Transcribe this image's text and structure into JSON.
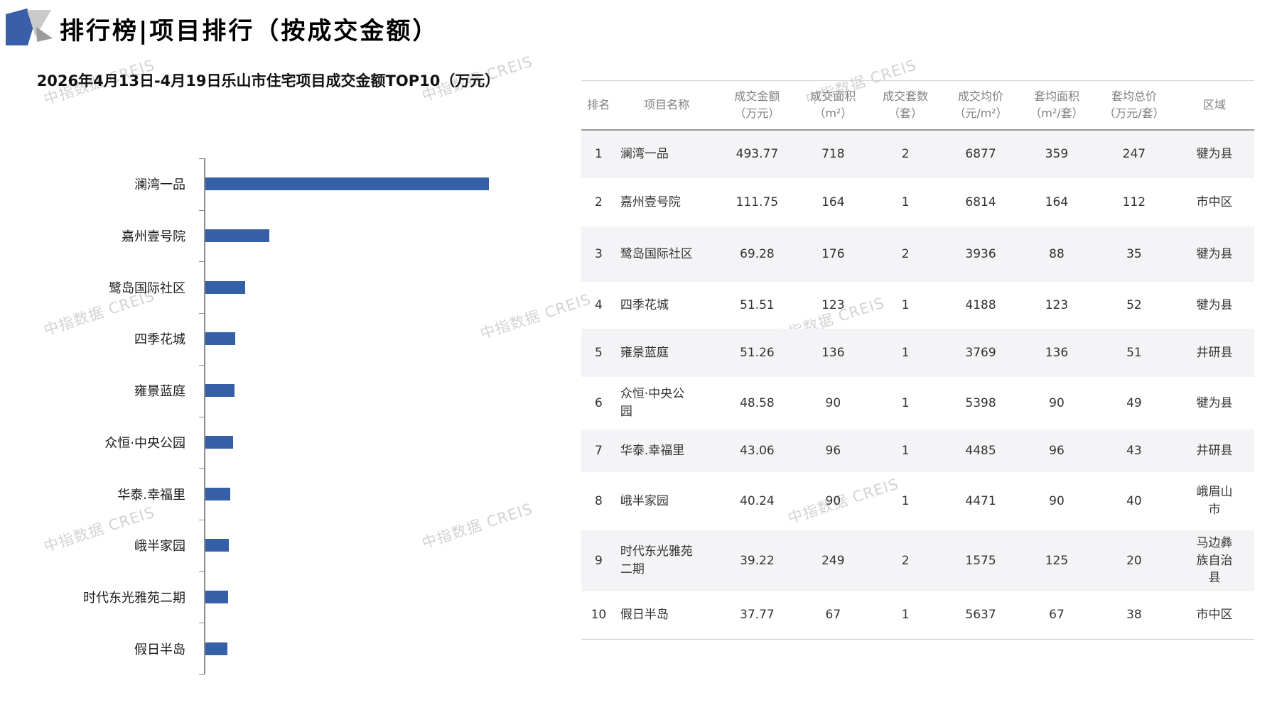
{
  "page": {
    "title": "排行榜|项目排行（按成交金额）",
    "watermark": "中指数据 CREIS"
  },
  "chart_data": {
    "type": "bar",
    "orientation": "horizontal",
    "title": "2026年4月13日-4月19日乐山市住宅项目成交金额TOP10（万元）",
    "categories": [
      "澜湾一品",
      "嘉州壹号院",
      "鹭岛国际社区",
      "四季花城",
      "雍景蓝庭",
      "众恒·中央公园",
      "华泰.幸福里",
      "峨半家园",
      "时代东光雅苑二期",
      "假日半岛"
    ],
    "values": [
      493.77,
      111.75,
      69.28,
      51.51,
      51.26,
      48.58,
      43.06,
      40.24,
      39.22,
      37.77
    ],
    "unit": "万元",
    "bar_color": "#3560a8",
    "xlim": [
      0,
      493.77
    ],
    "grid": false,
    "legend": false
  },
  "table": {
    "columns": [
      {
        "l1": "排名",
        "l2": ""
      },
      {
        "l1": "项目名称",
        "l2": ""
      },
      {
        "l1": "成交金额",
        "l2": "（万元）"
      },
      {
        "l1": "成交面积",
        "l2": "（m²）"
      },
      {
        "l1": "成交套数",
        "l2": "（套）"
      },
      {
        "l1": "成交均价",
        "l2": "（元/m²）"
      },
      {
        "l1": "套均面积",
        "l2": "（m²/套）"
      },
      {
        "l1": "套均总价",
        "l2": "（万元/套）"
      },
      {
        "l1": "区域",
        "l2": ""
      }
    ],
    "rows": [
      [
        "1",
        "澜湾一品",
        "493.77",
        "718",
        "2",
        "6877",
        "359",
        "247",
        "犍为县"
      ],
      [
        "2",
        "嘉州壹号院",
        "111.75",
        "164",
        "1",
        "6814",
        "164",
        "112",
        "市中区"
      ],
      [
        "3",
        "鹭岛国际社区",
        "69.28",
        "176",
        "2",
        "3936",
        "88",
        "35",
        "犍为县"
      ],
      [
        "4",
        "四季花城",
        "51.51",
        "123",
        "1",
        "4188",
        "123",
        "52",
        "犍为县"
      ],
      [
        "5",
        "雍景蓝庭",
        "51.26",
        "136",
        "1",
        "3769",
        "136",
        "51",
        "井研县"
      ],
      [
        "6",
        "众恒·中央公园",
        "48.58",
        "90",
        "1",
        "5398",
        "90",
        "49",
        "犍为县"
      ],
      [
        "7",
        "华泰.幸福里",
        "43.06",
        "96",
        "1",
        "4485",
        "96",
        "43",
        "井研县"
      ],
      [
        "8",
        "峨半家园",
        "40.24",
        "90",
        "1",
        "4471",
        "90",
        "40",
        "峨眉山市"
      ],
      [
        "9",
        "时代东光雅苑二期",
        "39.22",
        "249",
        "2",
        "1575",
        "125",
        "20",
        "马边彝族自治县"
      ],
      [
        "10",
        "假日半岛",
        "37.77",
        "67",
        "1",
        "5637",
        "67",
        "38",
        "市中区"
      ]
    ]
  },
  "logo": {
    "blue": "#3a5fa8",
    "light_gray": "#c9c9c9",
    "dark_gray": "#9b9b9b"
  }
}
